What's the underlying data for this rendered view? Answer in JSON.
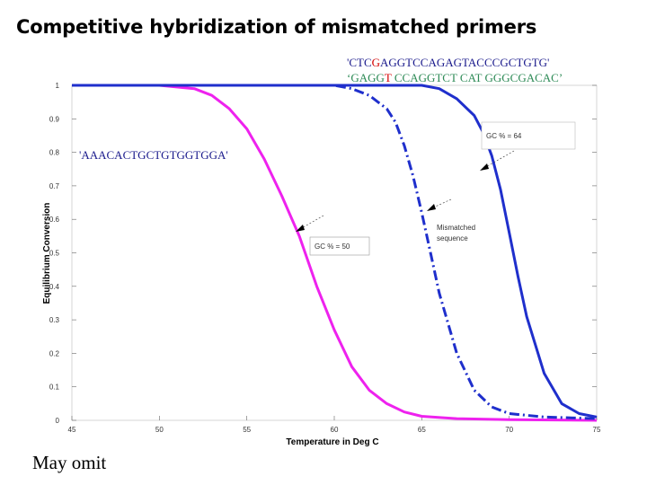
{
  "slide": {
    "title": "Competitive hybridization of mismatched primers",
    "note": "May omit"
  },
  "sequences": {
    "top_strand": {
      "before": "'CTC",
      "mismatch": "G",
      "after": "AGGTCCAGAGTACCCGCTGTG'"
    },
    "bottom_strand": {
      "before": "‘GAGG",
      "mismatch": "T",
      "after": " CCAGGTCT CAT GGGCGACAC’"
    },
    "short_probe": "'AAACACTGCTGTGGTGGA'"
  },
  "colors": {
    "magenta": "#ee22ee",
    "blue": "#1f2fcc",
    "mismatch_red": "#d40000",
    "seq_green": "#2e8b57"
  },
  "chart_data": {
    "type": "line",
    "title": "",
    "xlabel": "Temperature in Deg C",
    "ylabel": "Equilibrium Conversion",
    "xlim": [
      45,
      75
    ],
    "ylim": [
      0,
      1
    ],
    "x_ticks": [
      "45",
      "50",
      "55",
      "60",
      "65",
      "70",
      "75"
    ],
    "y_ticks": [
      "0",
      "0.1",
      "0.2",
      "0.3",
      "0.4",
      "0.5",
      "0.6",
      "0.7",
      "0.8",
      "0.9",
      "1"
    ],
    "series": [
      {
        "name": "GC % = 50",
        "style": "solid",
        "color": "#ee22ee",
        "x": [
          45,
          48,
          50,
          52,
          53,
          54,
          55,
          56,
          57,
          58,
          59,
          60,
          61,
          62,
          63,
          64,
          65,
          67,
          70,
          75
        ],
        "y": [
          1.0,
          1.0,
          1.0,
          0.99,
          0.97,
          0.93,
          0.87,
          0.78,
          0.67,
          0.55,
          0.4,
          0.27,
          0.16,
          0.09,
          0.05,
          0.025,
          0.012,
          0.005,
          0.002,
          0.0
        ]
      },
      {
        "name": "Mismatched sequence",
        "style": "dashdot",
        "color": "#1f2fcc",
        "x": [
          45,
          55,
          60,
          61,
          62,
          63,
          63.5,
          64,
          64.5,
          65,
          65.5,
          66,
          67,
          68,
          69,
          70,
          72,
          75
        ],
        "y": [
          1.0,
          1.0,
          1.0,
          0.99,
          0.97,
          0.93,
          0.89,
          0.82,
          0.73,
          0.62,
          0.5,
          0.38,
          0.2,
          0.09,
          0.04,
          0.02,
          0.01,
          0.005
        ]
      },
      {
        "name": "GC % = 64",
        "style": "solid",
        "color": "#1f2fcc",
        "x": [
          45,
          60,
          65,
          66,
          67,
          68,
          68.5,
          69,
          69.5,
          70,
          70.5,
          71,
          72,
          73,
          74,
          75
        ],
        "y": [
          1.0,
          1.0,
          1.0,
          0.99,
          0.96,
          0.91,
          0.86,
          0.79,
          0.69,
          0.56,
          0.43,
          0.31,
          0.14,
          0.05,
          0.02,
          0.01
        ]
      }
    ],
    "annotations": [
      {
        "text": "GC % = 64",
        "points_to": "GC % = 64"
      },
      {
        "text_lines": [
          "Mismatched",
          "sequence"
        ],
        "points_to": "Mismatched sequence"
      },
      {
        "text": "GC % = 50",
        "points_to": "GC % = 50"
      }
    ]
  }
}
